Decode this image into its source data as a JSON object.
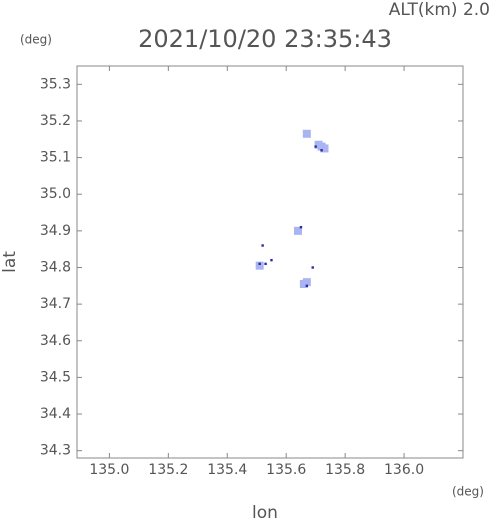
{
  "chart_data": {
    "type": "scatter",
    "title": "2021/10/20 23:35:43",
    "subtitle": "ALT(km) 2.0",
    "y_unit": "(deg)",
    "x_unit": "(deg)",
    "xlabel": "lon",
    "ylabel": "lat",
    "xlim": [
      134.89,
      136.2
    ],
    "ylim": [
      34.28,
      35.35
    ],
    "xticks": [
      {
        "value": 135.0,
        "label": "135.0"
      },
      135.2,
      135.4,
      135.6,
      135.8,
      {
        "value": 136.0,
        "label": "136.0"
      }
    ],
    "yticks": [
      35.3,
      35.2,
      35.1,
      {
        "value": 35.0,
        "label": "35.0"
      },
      34.9,
      34.8,
      34.7,
      34.6,
      34.5,
      34.4,
      34.3
    ],
    "series": [
      {
        "color": "#a9b4f0",
        "x": [
          135.72,
          135.73,
          135.71,
          135.67,
          135.64,
          135.51,
          135.66,
          135.67
        ],
        "values": [
          35.13,
          35.125,
          35.135,
          35.165,
          34.9,
          34.805,
          34.755,
          34.76
        ]
      },
      {
        "color": "#2a2aa8",
        "x": [
          135.7,
          135.72,
          135.51,
          135.53,
          135.55,
          135.65,
          135.67,
          135.69,
          135.52
        ],
        "values": [
          35.13,
          35.12,
          34.81,
          34.81,
          34.82,
          34.91,
          34.75,
          34.8,
          34.86
        ]
      }
    ]
  }
}
